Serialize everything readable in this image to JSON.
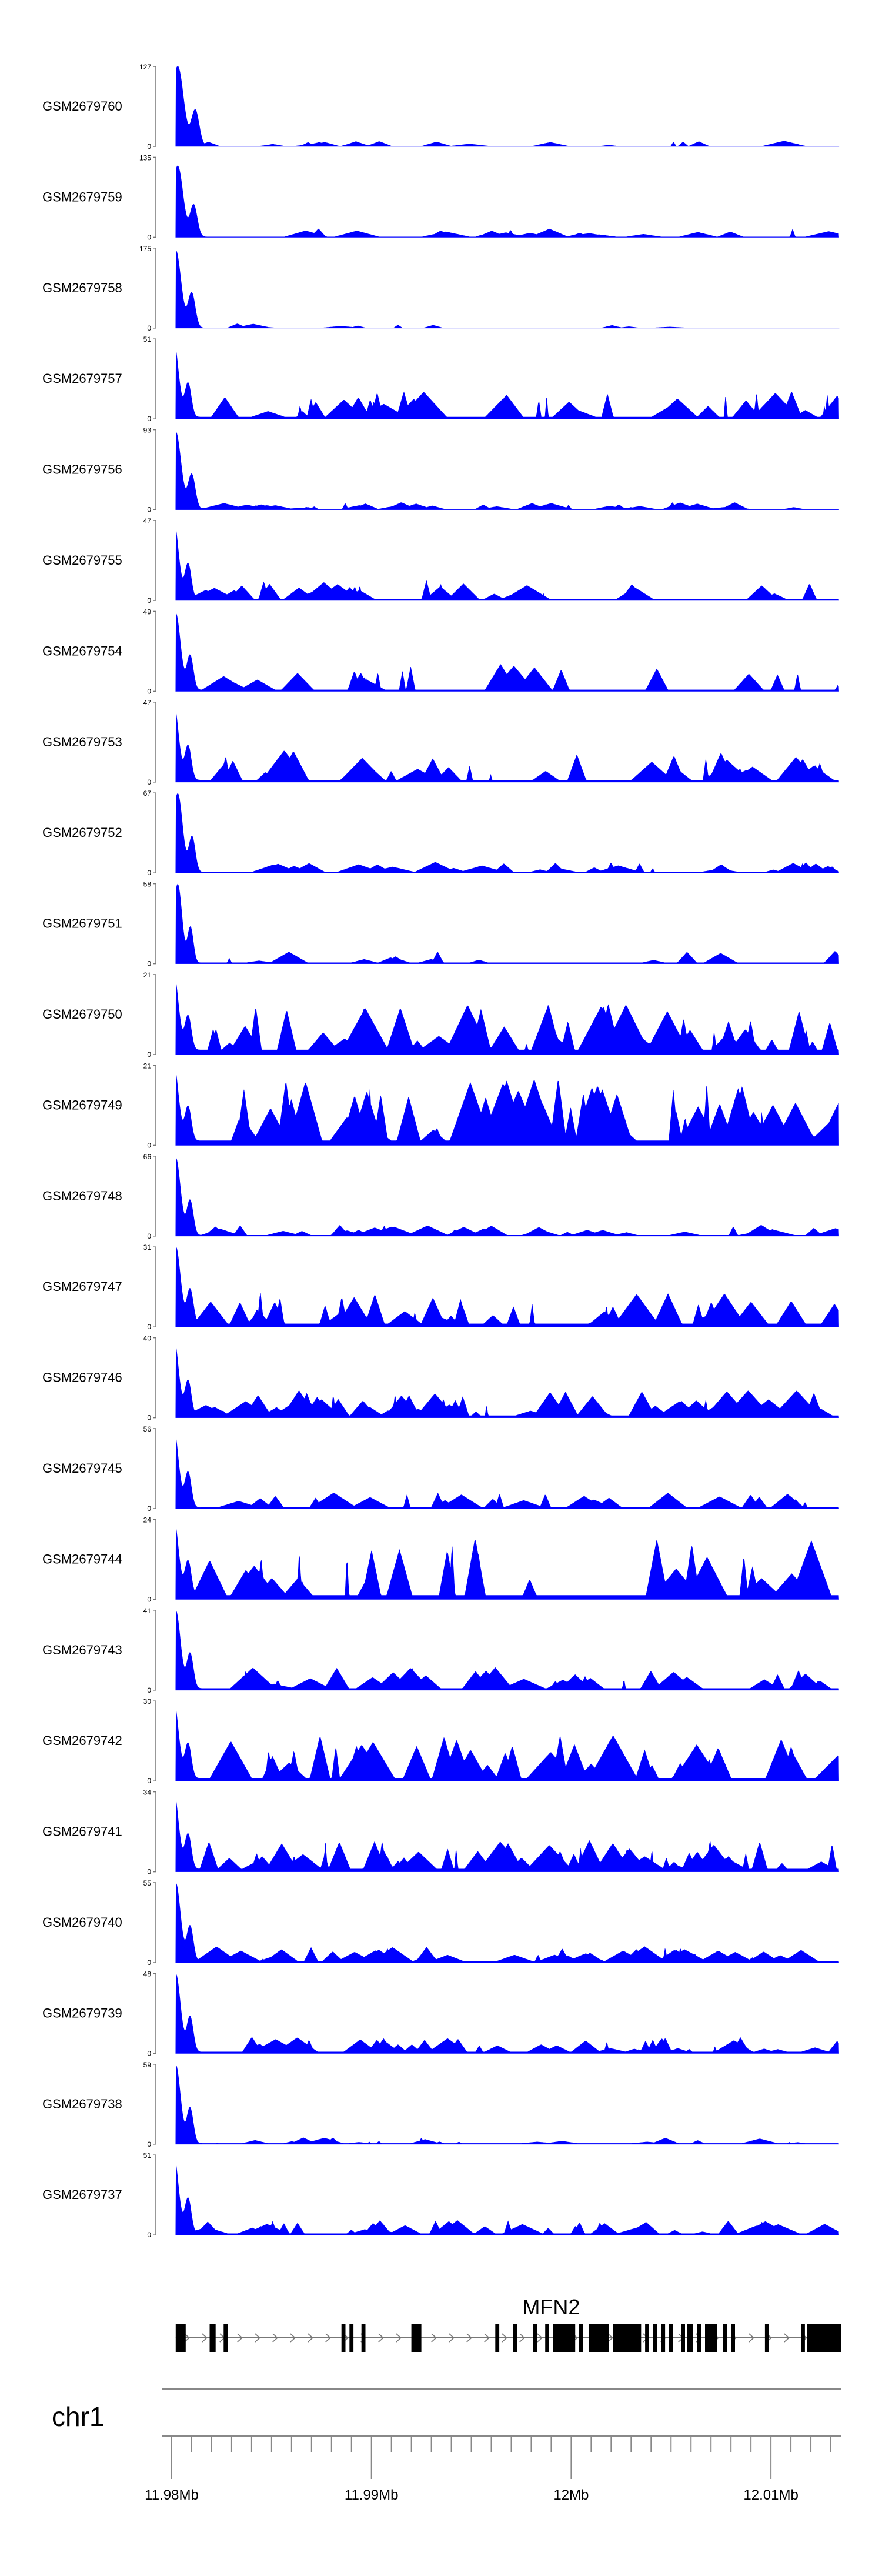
{
  "chart_data": {
    "type": "area",
    "title": "",
    "xlabel": "",
    "ylabel": "",
    "x_unit": "Mb",
    "xlim": [
      11.9795,
      12.0135
    ],
    "series_color": "#0000ff",
    "x_ticks": [
      {
        "value": 11.98,
        "label": "11.98Mb"
      },
      {
        "value": 11.99,
        "label": "11.99Mb"
      },
      {
        "value": 12.0,
        "label": "12Mb"
      },
      {
        "value": 12.01,
        "label": "12.01Mb"
      }
    ],
    "chromosome": "chr1",
    "gene": {
      "name": "MFN2",
      "strand": "+",
      "start": 11.9802,
      "end": 12.0134,
      "exons": [
        [
          11.9802,
          11.9807
        ],
        [
          11.9819,
          11.9822
        ],
        [
          11.9826,
          11.9828
        ],
        [
          11.9885,
          11.9887
        ],
        [
          11.9889,
          11.9891
        ],
        [
          11.9895,
          11.9897
        ],
        [
          11.992,
          11.9923
        ],
        [
          11.9923,
          11.9925
        ],
        [
          11.9962,
          11.9964
        ],
        [
          11.9971,
          11.9973
        ],
        [
          11.9981,
          11.9983
        ],
        [
          11.9987,
          11.9989
        ],
        [
          11.9991,
          12.0002
        ],
        [
          12.0004,
          12.0005
        ],
        [
          12.0009,
          12.0019
        ],
        [
          12.0021,
          12.0023
        ],
        [
          12.0023,
          12.0035
        ],
        [
          12.0037,
          12.0039
        ],
        [
          12.0041,
          12.0043
        ],
        [
          12.0045,
          12.0047
        ],
        [
          12.0049,
          12.0051
        ],
        [
          12.0055,
          12.0057
        ],
        [
          12.0058,
          12.0061
        ],
        [
          12.0063,
          12.0065
        ],
        [
          12.0067,
          12.0069
        ],
        [
          12.0069,
          12.0071
        ],
        [
          12.0071,
          12.0073
        ],
        [
          12.0076,
          12.0078
        ],
        [
          12.008,
          12.0082
        ],
        [
          12.0097,
          12.0099
        ],
        [
          12.0115,
          12.0117
        ],
        [
          12.0118,
          12.0135
        ]
      ],
      "thick_exons_from": 12.0004
    },
    "series": [
      {
        "name": "GSM2679760",
        "ymax": 127,
        "base_level": 1.5,
        "peak": {
          "center": 11.9803,
          "width": 0.00055,
          "height": 127
        },
        "minor_peaks": 22,
        "minor_scale": 0.06,
        "seed": 3
      },
      {
        "name": "GSM2679759",
        "ymax": 135,
        "base_level": 2.0,
        "peak": {
          "center": 11.9803,
          "width": 0.0005,
          "height": 120
        },
        "minor_peaks": 24,
        "minor_scale": 0.1,
        "seed": 7
      },
      {
        "name": "GSM2679758",
        "ymax": 175,
        "base_level": 1.5,
        "peak": {
          "center": 11.9802,
          "width": 0.0005,
          "height": 170
        },
        "minor_peaks": 10,
        "minor_scale": 0.05,
        "seed": 11
      },
      {
        "name": "GSM2679757",
        "ymax": 51,
        "base_level": 4.0,
        "peak": {
          "center": 11.9801,
          "width": 0.00045,
          "height": 48
        },
        "minor_peaks": 40,
        "minor_scale": 0.3,
        "seed": 13
      },
      {
        "name": "GSM2679756",
        "ymax": 93,
        "base_level": 2.0,
        "peak": {
          "center": 11.9802,
          "width": 0.0005,
          "height": 90
        },
        "minor_peaks": 42,
        "minor_scale": 0.08,
        "seed": 17
      },
      {
        "name": "GSM2679755",
        "ymax": 47,
        "base_level": 3.0,
        "peak": {
          "center": 11.9801,
          "width": 0.00045,
          "height": 46
        },
        "minor_peaks": 28,
        "minor_scale": 0.22,
        "seed": 19
      },
      {
        "name": "GSM2679754",
        "ymax": 49,
        "base_level": 3.0,
        "peak": {
          "center": 11.9802,
          "width": 0.00045,
          "height": 47
        },
        "minor_peaks": 24,
        "minor_scale": 0.3,
        "seed": 23
      },
      {
        "name": "GSM2679753",
        "ymax": 47,
        "base_level": 4.0,
        "peak": {
          "center": 11.9801,
          "width": 0.00045,
          "height": 45
        },
        "minor_peaks": 34,
        "minor_scale": 0.35,
        "seed": 29
      },
      {
        "name": "GSM2679752",
        "ymax": 67,
        "base_level": 2.0,
        "peak": {
          "center": 11.9803,
          "width": 0.00045,
          "height": 66
        },
        "minor_peaks": 34,
        "minor_scale": 0.12,
        "seed": 31
      },
      {
        "name": "GSM2679751",
        "ymax": 58,
        "base_level": 2.5,
        "peak": {
          "center": 11.9803,
          "width": 0.0004,
          "height": 57
        },
        "minor_peaks": 16,
        "minor_scale": 0.14,
        "seed": 37
      },
      {
        "name": "GSM2679750",
        "ymax": 21,
        "base_level": 4.0,
        "peak": {
          "center": 11.9801,
          "width": 0.00045,
          "height": 20
        },
        "minor_peaks": 55,
        "minor_scale": 0.55,
        "seed": 41
      },
      {
        "name": "GSM2679749",
        "ymax": 21,
        "base_level": 4.0,
        "peak": {
          "center": 11.9801,
          "width": 0.00045,
          "height": 20
        },
        "minor_peaks": 60,
        "minor_scale": 0.75,
        "seed": 43
      },
      {
        "name": "GSM2679748",
        "ymax": 66,
        "base_level": 2.5,
        "peak": {
          "center": 11.9802,
          "width": 0.00045,
          "height": 64
        },
        "minor_peaks": 42,
        "minor_scale": 0.12,
        "seed": 47
      },
      {
        "name": "GSM2679747",
        "ymax": 31,
        "base_level": 4.0,
        "peak": {
          "center": 11.9802,
          "width": 0.00045,
          "height": 30
        },
        "minor_peaks": 46,
        "minor_scale": 0.4,
        "seed": 53
      },
      {
        "name": "GSM2679746",
        "ymax": 40,
        "base_level": 3.5,
        "peak": {
          "center": 11.9801,
          "width": 0.00045,
          "height": 39
        },
        "minor_peaks": 62,
        "minor_scale": 0.3,
        "seed": 59
      },
      {
        "name": "GSM2679745",
        "ymax": 56,
        "base_level": 2.5,
        "peak": {
          "center": 11.9801,
          "width": 0.00045,
          "height": 55
        },
        "minor_peaks": 30,
        "minor_scale": 0.18,
        "seed": 61
      },
      {
        "name": "GSM2679744",
        "ymax": 24,
        "base_level": 4.0,
        "peak": {
          "center": 11.9801,
          "width": 0.00045,
          "height": 23
        },
        "minor_peaks": 30,
        "minor_scale": 0.7,
        "seed": 67
      },
      {
        "name": "GSM2679743",
        "ymax": 41,
        "base_level": 3.0,
        "peak": {
          "center": 11.9802,
          "width": 0.00045,
          "height": 40
        },
        "minor_peaks": 40,
        "minor_scale": 0.25,
        "seed": 71
      },
      {
        "name": "GSM2679742",
        "ymax": 30,
        "base_level": 3.5,
        "peak": {
          "center": 11.9801,
          "width": 0.00045,
          "height": 29
        },
        "minor_peaks": 46,
        "minor_scale": 0.5,
        "seed": 73
      },
      {
        "name": "GSM2679741",
        "ymax": 34,
        "base_level": 4.0,
        "peak": {
          "center": 11.9801,
          "width": 0.00045,
          "height": 33
        },
        "minor_peaks": 58,
        "minor_scale": 0.35,
        "seed": 79
      },
      {
        "name": "GSM2679740",
        "ymax": 55,
        "base_level": 3.0,
        "peak": {
          "center": 11.9802,
          "width": 0.00045,
          "height": 54
        },
        "minor_peaks": 50,
        "minor_scale": 0.18,
        "seed": 83
      },
      {
        "name": "GSM2679739",
        "ymax": 48,
        "base_level": 3.0,
        "peak": {
          "center": 11.9802,
          "width": 0.00045,
          "height": 47
        },
        "minor_peaks": 40,
        "minor_scale": 0.18,
        "seed": 89
      },
      {
        "name": "GSM2679738",
        "ymax": 59,
        "base_level": 2.0,
        "peak": {
          "center": 11.9802,
          "width": 0.00045,
          "height": 58
        },
        "minor_peaks": 24,
        "minor_scale": 0.08,
        "seed": 97
      },
      {
        "name": "GSM2679737",
        "ymax": 51,
        "base_level": 3.0,
        "peak": {
          "center": 11.9801,
          "width": 0.00045,
          "height": 50
        },
        "minor_peaks": 46,
        "minor_scale": 0.16,
        "seed": 101
      }
    ]
  }
}
